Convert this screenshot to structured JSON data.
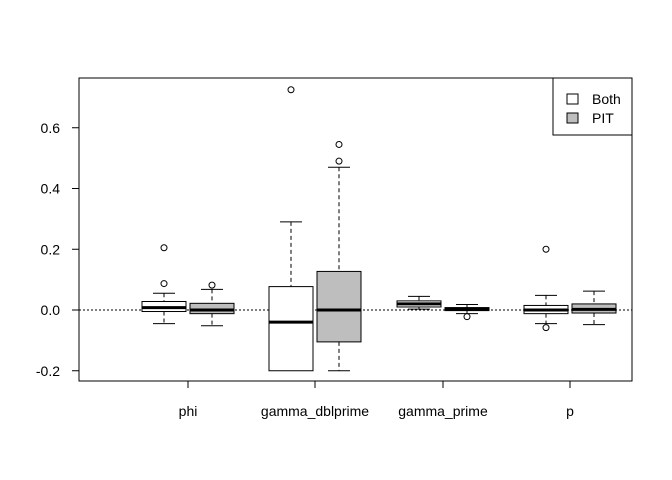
{
  "chart_data": {
    "type": "boxplot",
    "categories": [
      "phi",
      "gamma_dblprime",
      "gamma_prime",
      "p"
    ],
    "ylim": [
      -0.24,
      0.75
    ],
    "yticks": [
      -0.2,
      0.0,
      0.2,
      0.4,
      0.6
    ],
    "ytick_labels": [
      "-0.2",
      "0.0",
      "0.2",
      "0.4",
      "0.6"
    ],
    "reference_line": 0,
    "legend": {
      "position": "top-right",
      "entries": [
        "Both",
        "PIT"
      ]
    },
    "series": [
      {
        "name": "Both",
        "color": "#ffffff",
        "boxes": [
          {
            "category": "phi",
            "min": -0.045,
            "q1": -0.005,
            "median": 0.008,
            "q3": 0.028,
            "max": 0.055,
            "outliers": [
              0.205,
              0.087
            ]
          },
          {
            "category": "gamma_dblprime",
            "min": -0.2,
            "q1": -0.2,
            "median": -0.04,
            "q3": 0.077,
            "max": 0.29,
            "outliers": [
              0.725
            ]
          },
          {
            "category": "gamma_prime",
            "min": 0.003,
            "q1": 0.01,
            "median": 0.02,
            "q3": 0.03,
            "max": 0.045,
            "outliers": []
          },
          {
            "category": "p",
            "min": -0.045,
            "q1": -0.012,
            "median": 0.0,
            "q3": 0.015,
            "max": 0.048,
            "outliers": [
              0.2,
              -0.058
            ]
          }
        ]
      },
      {
        "name": "PIT",
        "color": "#bebebe",
        "boxes": [
          {
            "category": "phi",
            "min": -0.052,
            "q1": -0.012,
            "median": 0.0,
            "q3": 0.022,
            "max": 0.068,
            "outliers": [
              0.082
            ]
          },
          {
            "category": "gamma_dblprime",
            "min": -0.2,
            "q1": -0.105,
            "median": 0.0,
            "q3": 0.127,
            "max": 0.47,
            "outliers": [
              0.545,
              0.49
            ]
          },
          {
            "category": "gamma_prime",
            "min": -0.012,
            "q1": -0.002,
            "median": 0.003,
            "q3": 0.008,
            "max": 0.018,
            "outliers": [
              -0.022
            ]
          },
          {
            "category": "p",
            "min": -0.048,
            "q1": -0.01,
            "median": 0.002,
            "q3": 0.02,
            "max": 0.062,
            "outliers": []
          }
        ]
      }
    ]
  }
}
